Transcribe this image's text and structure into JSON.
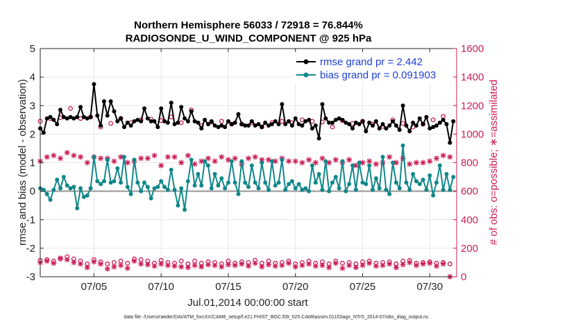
{
  "chart_data": {
    "type": "line",
    "title_line1": "Northern Hemisphere 56033 / 72918 = 76.844%",
    "title_line2": "RADIOSONDE_U_WIND_COMPONENT @ 925 hPa",
    "xlabel": "Jul.01,2014 00:00:00 start",
    "ylabel_left": "rmse and bias (model - observation)",
    "ylabel_right": "# of obs: o=possible; ∗=assimilated",
    "xlim": [
      1,
      32
    ],
    "ylim_left": [
      -3,
      5
    ],
    "ylim_right": [
      0,
      1600
    ],
    "x_ticks": [
      5,
      10,
      15,
      20,
      25,
      30
    ],
    "x_tick_labels": [
      "07/05",
      "07/10",
      "07/15",
      "07/20",
      "07/25",
      "07/30"
    ],
    "y_left_ticks": [
      -3,
      -2,
      -1,
      0,
      1,
      2,
      3,
      4,
      5
    ],
    "y_left_tick_labels": [
      "-3",
      "-2",
      "-1",
      "0",
      "1",
      "2",
      "3",
      "4",
      "5"
    ],
    "y_right_ticks": [
      0,
      200,
      400,
      600,
      800,
      1000,
      1200,
      1400,
      1600
    ],
    "y_right_tick_labels": [
      "0",
      "200",
      "400",
      "600",
      "800",
      "1000",
      "1200",
      "1400",
      "1600"
    ],
    "grid": true,
    "legend_position": "top-right",
    "colors": {
      "rmse": "#000000",
      "bias": "#10878a",
      "obs": "#cc1d57",
      "zero_line": "#a8a8a8",
      "legend_text": "#1f3fd6"
    },
    "series": [
      {
        "name": "rmse grand pr = 2.442",
        "axis": "left",
        "x": [
          1.0,
          1.25,
          1.5,
          1.75,
          2.0,
          2.25,
          2.5,
          2.75,
          3.0,
          3.25,
          3.5,
          3.75,
          4.0,
          4.25,
          4.5,
          4.75,
          5.0,
          5.25,
          5.5,
          5.75,
          6.0,
          6.25,
          6.5,
          6.75,
          7.0,
          7.25,
          7.5,
          7.75,
          8.0,
          8.25,
          8.5,
          8.75,
          9.0,
          9.25,
          9.5,
          9.75,
          10.0,
          10.25,
          10.5,
          10.75,
          11.0,
          11.25,
          11.5,
          11.75,
          12.0,
          12.25,
          12.5,
          12.75,
          13.0,
          13.25,
          13.5,
          13.75,
          14.0,
          14.25,
          14.5,
          14.75,
          15.0,
          15.25,
          15.5,
          15.75,
          16.0,
          16.25,
          16.5,
          16.75,
          17.0,
          17.25,
          17.5,
          17.75,
          18.0,
          18.25,
          18.5,
          18.75,
          19.0,
          19.25,
          19.5,
          19.75,
          20.0,
          20.25,
          20.5,
          20.75,
          21.0,
          21.25,
          21.5,
          21.75,
          22.0,
          22.25,
          22.5,
          22.75,
          23.0,
          23.25,
          23.5,
          23.75,
          24.0,
          24.25,
          24.5,
          24.75,
          25.0,
          25.25,
          25.5,
          25.75,
          26.0,
          26.25,
          26.5,
          26.75,
          27.0,
          27.25,
          27.5,
          27.75,
          28.0,
          28.25,
          28.5,
          28.75,
          29.0,
          29.25,
          29.5,
          29.75,
          30.0,
          30.25,
          30.5,
          30.75,
          31.0,
          31.25,
          31.5,
          31.75
        ],
        "values": [
          2.2,
          2.05,
          2.55,
          2.6,
          2.5,
          2.35,
          2.85,
          2.6,
          2.55,
          2.6,
          2.55,
          2.6,
          2.95,
          2.6,
          2.55,
          2.6,
          3.75,
          2.65,
          2.3,
          3.15,
          2.65,
          3.15,
          2.8,
          2.45,
          2.55,
          2.25,
          2.4,
          2.3,
          2.45,
          2.5,
          2.45,
          2.9,
          2.55,
          2.45,
          2.45,
          2.25,
          2.9,
          2.45,
          2.4,
          3.1,
          2.35,
          2.4,
          2.95,
          2.55,
          2.45,
          2.8,
          2.45,
          2.4,
          2.2,
          2.5,
          2.35,
          2.45,
          2.3,
          2.25,
          2.3,
          2.25,
          2.45,
          2.35,
          2.4,
          2.7,
          2.35,
          2.3,
          2.3,
          2.45,
          2.3,
          2.35,
          2.25,
          2.4,
          2.3,
          2.35,
          2.45,
          2.35,
          3.05,
          2.35,
          2.45,
          2.3,
          2.55,
          2.35,
          2.3,
          2.45,
          2.5,
          2.2,
          2.3,
          1.85,
          3.05,
          2.55,
          2.4,
          2.4,
          2.5,
          2.55,
          2.5,
          2.4,
          2.35,
          2.2,
          2.4,
          2.35,
          2.45,
          2.1,
          2.4,
          2.3,
          2.45,
          2.2,
          2.35,
          2.2,
          2.3,
          2.45,
          2.3,
          2.15,
          3.0,
          2.3,
          2.1,
          2.4,
          2.3,
          2.55,
          2.35,
          2.6,
          2.2,
          2.25,
          2.3,
          2.4,
          2.5,
          2.35,
          1.7,
          2.45
        ]
      },
      {
        "name": "bias grand pr = 0.091903",
        "axis": "left",
        "x": [
          1.0,
          1.25,
          1.5,
          1.75,
          2.0,
          2.25,
          2.5,
          2.75,
          3.0,
          3.25,
          3.5,
          3.75,
          4.0,
          4.25,
          4.5,
          4.75,
          5.0,
          5.25,
          5.5,
          5.75,
          6.0,
          6.25,
          6.5,
          6.75,
          7.0,
          7.25,
          7.5,
          7.75,
          8.0,
          8.25,
          8.5,
          8.75,
          9.0,
          9.25,
          9.5,
          9.75,
          10.0,
          10.25,
          10.5,
          10.75,
          11.0,
          11.25,
          11.5,
          11.75,
          12.0,
          12.25,
          12.5,
          12.75,
          13.0,
          13.25,
          13.5,
          13.75,
          14.0,
          14.25,
          14.5,
          14.75,
          15.0,
          15.25,
          15.5,
          15.75,
          16.0,
          16.25,
          16.5,
          16.75,
          17.0,
          17.25,
          17.5,
          17.75,
          18.0,
          18.25,
          18.5,
          18.75,
          19.0,
          19.25,
          19.5,
          19.75,
          20.0,
          20.25,
          20.5,
          20.75,
          21.0,
          21.25,
          21.5,
          21.75,
          22.0,
          22.25,
          22.5,
          22.75,
          23.0,
          23.25,
          23.5,
          23.75,
          24.0,
          24.25,
          24.5,
          24.75,
          25.0,
          25.25,
          25.5,
          25.75,
          26.0,
          26.25,
          26.5,
          26.75,
          27.0,
          27.25,
          27.5,
          27.75,
          28.0,
          28.25,
          28.5,
          28.75,
          29.0,
          29.25,
          29.5,
          29.75,
          30.0,
          30.25,
          30.5,
          30.75,
          31.0,
          31.25,
          31.5,
          31.75
        ],
        "values": [
          0.1,
          0.05,
          -0.1,
          -0.3,
          0.05,
          0.4,
          0.1,
          0.5,
          0.2,
          0.1,
          0.15,
          -0.6,
          0.1,
          -0.2,
          -0.15,
          0.1,
          1.2,
          0.35,
          0.25,
          0.35,
          1.1,
          0.3,
          0.35,
          0.8,
          0.3,
          1.2,
          0.15,
          -0.1,
          1.1,
          0.3,
          0.0,
          0.3,
          0.15,
          -0.25,
          0.1,
          0.15,
          0.35,
          0.15,
          0.05,
          0.75,
          0.05,
          -0.5,
          0.1,
          -0.65,
          0.35,
          1.1,
          0.2,
          0.6,
          0.2,
          1.05,
          0.9,
          0.1,
          0.6,
          0.2,
          0.45,
          0.1,
          0.3,
          1.05,
          0.3,
          -0.1,
          1.05,
          0.3,
          0.15,
          0.9,
          0.3,
          0.1,
          1.0,
          0.3,
          0.05,
          1.05,
          0.2,
          0.3,
          1.1,
          0.05,
          0.25,
          0.35,
          0.1,
          0.25,
          0.05,
          0.1,
          0.0,
          0.9,
          0.3,
          0.6,
          0.05,
          1.05,
          0.0,
          0.3,
          0.5,
          0.1,
          1.05,
          0.0,
          0.25,
          0.9,
          0.05,
          1.0,
          0.3,
          0.25,
          0.9,
          0.05,
          0.45,
          0.1,
          1.2,
          0.05,
          -0.1,
          1.0,
          0.3,
          0.1,
          1.6,
          0.3,
          0.05,
          0.6,
          0.35,
          0.25,
          0.4,
          0.05,
          0.55,
          -0.15,
          0.3,
          0.9,
          0.05,
          0.6,
          0.05,
          0.5
        ]
      },
      {
        "name": "possible (upper)",
        "axis": "right",
        "marker": "circle",
        "x": [
          1.0,
          1.75,
          2.5,
          3.25,
          4.0,
          4.75,
          5.5,
          6.25,
          7.0,
          7.75,
          8.5,
          9.25,
          10.0,
          10.75,
          11.5,
          12.25,
          13.0,
          13.75,
          14.5,
          15.25,
          16.0,
          16.75,
          17.5,
          18.25,
          19.0,
          19.75,
          20.5,
          21.25,
          22.0,
          22.75,
          23.5,
          24.25,
          25.0,
          25.75,
          26.5,
          27.25,
          28.0,
          28.75,
          29.5,
          30.25,
          31.0
        ],
        "values": [
          1090,
          1110,
          1115,
          1180,
          1110,
          1120,
          1050,
          1075,
          1110,
          1080,
          1100,
          1105,
          1095,
          1120,
          1080,
          1170,
          1060,
          1085,
          1090,
          1070,
          1070,
          1080,
          1050,
          1080,
          1090,
          1080,
          1100,
          1090,
          1085,
          1050,
          1095,
          1075,
          1090,
          1070,
          1055,
          1100,
          1075,
          1050,
          1070,
          1100,
          1125
        ]
      },
      {
        "name": "assimilated (upper)",
        "axis": "right",
        "marker": "star",
        "x": [
          1.0,
          1.5,
          2.0,
          2.5,
          3.0,
          3.5,
          4.0,
          4.5,
          5.0,
          5.5,
          6.0,
          6.5,
          7.0,
          7.5,
          8.0,
          8.5,
          9.0,
          9.5,
          10.0,
          10.5,
          11.0,
          11.5,
          12.0,
          12.5,
          13.0,
          13.5,
          14.0,
          14.5,
          15.0,
          15.5,
          16.0,
          16.5,
          17.0,
          17.5,
          18.0,
          18.5,
          19.0,
          19.5,
          20.0,
          20.5,
          21.0,
          21.5,
          22.0,
          22.5,
          23.0,
          23.5,
          24.0,
          24.5,
          25.0,
          25.5,
          26.0,
          26.5,
          27.0,
          27.5,
          28.0,
          28.5,
          29.0,
          29.5,
          30.0,
          30.5,
          31.0,
          31.5
        ],
        "values": [
          810,
          840,
          850,
          830,
          870,
          850,
          840,
          800,
          840,
          830,
          830,
          810,
          840,
          800,
          810,
          830,
          830,
          850,
          780,
          840,
          840,
          800,
          850,
          790,
          810,
          830,
          810,
          840,
          820,
          830,
          790,
          830,
          840,
          820,
          820,
          810,
          830,
          810,
          810,
          800,
          820,
          800,
          830,
          800,
          820,
          800,
          820,
          780,
          800,
          810,
          790,
          800,
          840,
          800,
          830,
          790,
          800,
          800,
          810,
          830,
          850,
          840
        ]
      },
      {
        "name": "possible (lower)",
        "axis": "right",
        "marker": "circle",
        "x": [
          1.0,
          1.5,
          2.0,
          2.5,
          3.0,
          3.5,
          4.0,
          4.5,
          5.0,
          5.5,
          6.0,
          6.5,
          7.0,
          7.5,
          8.0,
          8.5,
          9.0,
          9.5,
          10.0,
          10.5,
          11.0,
          11.5,
          12.0,
          12.5,
          13.0,
          13.5,
          14.0,
          14.5,
          15.0,
          15.5,
          16.0,
          16.5,
          17.0,
          17.5,
          18.0,
          18.5,
          19.0,
          19.5,
          20.0,
          20.5,
          21.0,
          21.5,
          22.0,
          22.5,
          23.0,
          23.5,
          24.0,
          24.5,
          25.0,
          25.5,
          26.0,
          26.5,
          27.0,
          27.5,
          28.0,
          28.5,
          29.0,
          29.5,
          30.0,
          30.5,
          31.0,
          31.5
        ],
        "values": [
          115,
          120,
          110,
          125,
          140,
          125,
          110,
          90,
          120,
          105,
          90,
          100,
          110,
          95,
          125,
          120,
          110,
          95,
          115,
          100,
          95,
          110,
          90,
          110,
          95,
          105,
          100,
          90,
          110,
          95,
          105,
          100,
          115,
          95,
          110,
          95,
          100,
          110,
          90,
          100,
          110,
          95,
          105,
          90,
          110,
          95,
          100,
          90,
          105,
          110,
          95,
          100,
          105,
          90,
          110,
          115,
          95,
          100,
          105,
          95,
          100,
          90
        ]
      },
      {
        "name": "assimilated (lower)",
        "axis": "right",
        "marker": "star",
        "x": [
          1.0,
          1.5,
          2.0,
          2.5,
          3.0,
          3.5,
          4.0,
          4.5,
          5.0,
          5.5,
          6.0,
          6.5,
          7.0,
          7.5,
          8.0,
          8.5,
          9.0,
          9.5,
          10.0,
          10.5,
          11.0,
          11.5,
          12.0,
          12.5,
          13.0,
          13.5,
          14.0,
          14.5,
          15.0,
          15.5,
          16.0,
          16.5,
          17.0,
          17.5,
          18.0,
          18.5,
          19.0,
          19.5,
          20.0,
          20.5,
          21.0,
          21.5,
          22.0,
          22.5,
          23.0,
          23.5,
          24.0,
          24.5,
          25.0,
          25.5,
          26.0,
          26.5,
          27.0,
          27.5,
          28.0,
          28.5,
          29.0,
          29.5,
          30.0,
          30.5,
          31.0,
          31.5
        ],
        "values": [
          100,
          110,
          95,
          130,
          120,
          100,
          90,
          65,
          105,
          90,
          55,
          70,
          80,
          60,
          110,
          90,
          85,
          75,
          90,
          80,
          75,
          70,
          65,
          80,
          70,
          85,
          80,
          70,
          85,
          80,
          90,
          75,
          95,
          70,
          85,
          75,
          80,
          95,
          70,
          80,
          90,
          75,
          80,
          65,
          95,
          60,
          80,
          65,
          80,
          95,
          75,
          80,
          90,
          65,
          85,
          100,
          80,
          90,
          95,
          75,
          90,
          0
        ]
      }
    ]
  },
  "footer_text": "data file: /Users/raeder/DAI/ATM_forcXX/CAM6_setup/f.e21.FHIST_BGC.f09_025.CAM6assim.011/Diags_NTrS_2014-07/obs_diag_output.nc"
}
